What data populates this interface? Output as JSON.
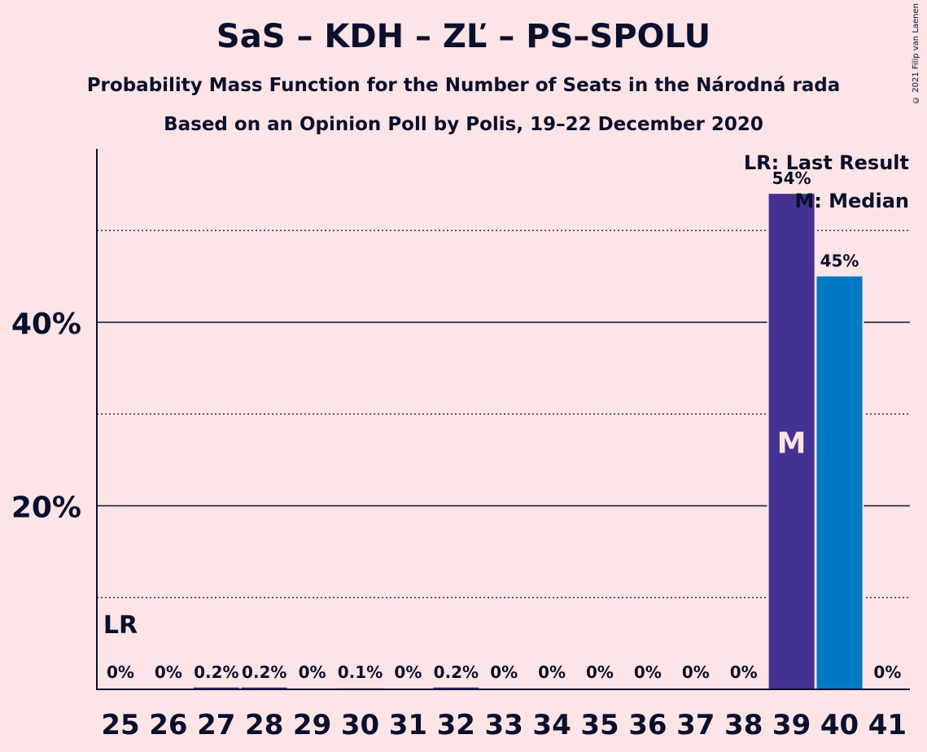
{
  "title": "SaS – KDH – ZĽ – PS–SPOLU",
  "subtitle": "Probability Mass Function for the Number of Seats in the Národná rada",
  "subtitle2": "Based on an Opinion Poll by Polis, 19–22 December 2020",
  "copyright": "© 2021 Filip van Laenen",
  "colors": {
    "background": "#fde4e6",
    "median_bar": "#433292",
    "other_bar": "#0079c4",
    "text": "#0b0f2c"
  },
  "chart_data": {
    "type": "bar",
    "categories": [
      "25",
      "26",
      "27",
      "28",
      "29",
      "30",
      "31",
      "32",
      "33",
      "34",
      "35",
      "36",
      "37",
      "38",
      "39",
      "40",
      "41"
    ],
    "values": [
      0,
      0,
      0.2,
      0.2,
      0,
      0.1,
      0,
      0.2,
      0,
      0,
      0,
      0,
      0,
      0,
      54,
      45,
      0
    ],
    "value_labels": [
      "0%",
      "0%",
      "0.2%",
      "0.2%",
      "0%",
      "0.1%",
      "0%",
      "0.2%",
      "0%",
      "0%",
      "0%",
      "0%",
      "0%",
      "0%",
      "54%",
      "45%",
      "0%"
    ],
    "y_ticks": [
      {
        "value": 20,
        "label": "20%"
      },
      {
        "value": 40,
        "label": "40%"
      }
    ],
    "minor_gridlines": [
      10,
      30,
      50
    ],
    "ylim": [
      0,
      59
    ],
    "median_category": "39",
    "median_marker": "M",
    "last_result_category": "25",
    "last_result_marker": "LR",
    "legend": [
      "LR: Last Result",
      "M: Median"
    ],
    "legend_position": "top-right"
  }
}
